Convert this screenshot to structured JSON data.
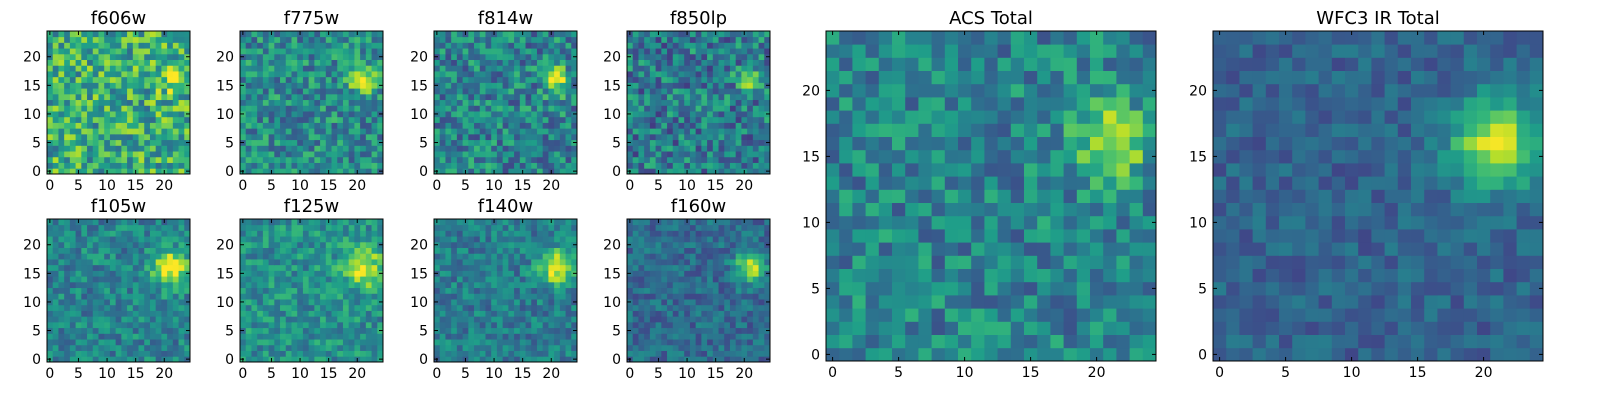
{
  "figure": {
    "rows": 25,
    "cols": 25
  },
  "chart_data": [
    {
      "type": "heatmap",
      "title": "f606w",
      "xticks": [
        0,
        5,
        10,
        15,
        20
      ],
      "yticks": [
        0,
        5,
        10,
        15,
        20
      ],
      "xlim": [
        -0.5,
        24.5
      ],
      "ylim": [
        -0.5,
        24.5
      ],
      "colormap": "viridis",
      "source": {
        "cx": 21,
        "cy": 16,
        "amp": 0.25,
        "sigma": 1.6
      },
      "noise": 0.55,
      "base": 0.62
    },
    {
      "type": "heatmap",
      "title": "f775w",
      "xticks": [
        0,
        5,
        10,
        15,
        20
      ],
      "yticks": [
        0,
        5,
        10,
        15,
        20
      ],
      "xlim": [
        -0.5,
        24.5
      ],
      "ylim": [
        -0.5,
        24.5
      ],
      "colormap": "viridis",
      "source": {
        "cx": 21,
        "cy": 16,
        "amp": 0.55,
        "sigma": 1.5
      },
      "noise": 0.45,
      "base": 0.48
    },
    {
      "type": "heatmap",
      "title": "f814w",
      "xticks": [
        0,
        5,
        10,
        15,
        20
      ],
      "yticks": [
        0,
        5,
        10,
        15,
        20
      ],
      "xlim": [
        -0.5,
        24.5
      ],
      "ylim": [
        -0.5,
        24.5
      ],
      "colormap": "viridis",
      "source": {
        "cx": 21,
        "cy": 16,
        "amp": 0.55,
        "sigma": 1.5
      },
      "noise": 0.48,
      "base": 0.45
    },
    {
      "type": "heatmap",
      "title": "f850lp",
      "xticks": [
        0,
        5,
        10,
        15,
        20
      ],
      "yticks": [
        0,
        5,
        10,
        15,
        20
      ],
      "xlim": [
        -0.5,
        24.5
      ],
      "ylim": [
        -0.5,
        24.5
      ],
      "colormap": "viridis",
      "source": {
        "cx": 21,
        "cy": 16,
        "amp": 0.55,
        "sigma": 1.4
      },
      "noise": 0.5,
      "base": 0.42
    },
    {
      "type": "heatmap",
      "title": "f105w",
      "xticks": [
        0,
        5,
        10,
        15,
        20
      ],
      "yticks": [
        0,
        5,
        10,
        15,
        20
      ],
      "xlim": [
        -0.5,
        24.5
      ],
      "ylim": [
        -0.5,
        24.5
      ],
      "colormap": "viridis",
      "source": {
        "cx": 21,
        "cy": 16,
        "amp": 0.55,
        "sigma": 2.2
      },
      "noise": 0.35,
      "base": 0.45
    },
    {
      "type": "heatmap",
      "title": "f125w",
      "xticks": [
        0,
        5,
        10,
        15,
        20
      ],
      "yticks": [
        0,
        5,
        10,
        15,
        20
      ],
      "xlim": [
        -0.5,
        24.5
      ],
      "ylim": [
        -0.5,
        24.5
      ],
      "colormap": "viridis",
      "source": {
        "cx": 21,
        "cy": 16,
        "amp": 0.5,
        "sigma": 2.3
      },
      "noise": 0.35,
      "base": 0.5
    },
    {
      "type": "heatmap",
      "title": "f140w",
      "xticks": [
        0,
        5,
        10,
        15,
        20
      ],
      "yticks": [
        0,
        5,
        10,
        15,
        20
      ],
      "xlim": [
        -0.5,
        24.5
      ],
      "ylim": [
        -0.5,
        24.5
      ],
      "colormap": "viridis",
      "source": {
        "cx": 21,
        "cy": 16,
        "amp": 0.55,
        "sigma": 2.2
      },
      "noise": 0.32,
      "base": 0.42
    },
    {
      "type": "heatmap",
      "title": "f160w",
      "xticks": [
        0,
        5,
        10,
        15,
        20
      ],
      "yticks": [
        0,
        5,
        10,
        15,
        20
      ],
      "xlim": [
        -0.5,
        24.5
      ],
      "ylim": [
        -0.5,
        24.5
      ],
      "colormap": "viridis",
      "source": {
        "cx": 21,
        "cy": 16,
        "amp": 0.55,
        "sigma": 1.9
      },
      "noise": 0.28,
      "base": 0.35
    },
    {
      "type": "heatmap",
      "title": "ACS Total",
      "xticks": [
        0,
        5,
        10,
        15,
        20
      ],
      "yticks": [
        0,
        5,
        10,
        15,
        20
      ],
      "xlim": [
        -0.5,
        24.5
      ],
      "ylim": [
        -0.5,
        24.5
      ],
      "colormap": "viridis",
      "source": {
        "cx": 21,
        "cy": 16,
        "amp": 0.5,
        "sigma": 1.8
      },
      "noise": 0.4,
      "base": 0.45
    },
    {
      "type": "heatmap",
      "title": "WFC3 IR Total",
      "xticks": [
        0,
        5,
        10,
        15,
        20
      ],
      "yticks": [
        0,
        5,
        10,
        15,
        20
      ],
      "xlim": [
        -0.5,
        24.5
      ],
      "ylim": [
        -0.5,
        24.5
      ],
      "colormap": "viridis",
      "source": {
        "cx": 21,
        "cy": 16,
        "amp": 0.6,
        "sigma": 2.4
      },
      "noise": 0.22,
      "base": 0.32
    }
  ]
}
